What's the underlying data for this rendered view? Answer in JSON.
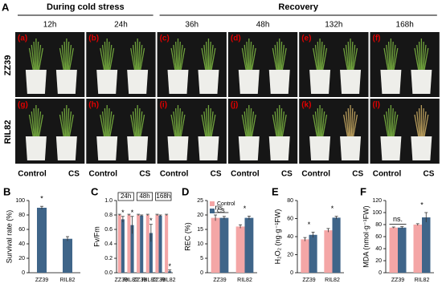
{
  "panel_a": {
    "label": "A",
    "headers": [
      "During cold stress",
      "Recovery"
    ],
    "times": [
      "12h",
      "24h",
      "36h",
      "48h",
      "132h",
      "168h"
    ],
    "rows": [
      "ZZ39",
      "RIL82"
    ],
    "panel_letters": [
      "(a)",
      "(b)",
      "(c)",
      "(d)",
      "(e)",
      "(f)",
      "(g)",
      "(h)",
      "(i)",
      "(j)",
      "(k)",
      "(l)"
    ],
    "treatments": [
      "Control",
      "CS"
    ]
  },
  "chart_data": [
    {
      "type": "bar",
      "panel": "B",
      "y_label": "Survival rate (%)",
      "categories": [
        "ZZ39",
        "RIL82"
      ],
      "series": [
        {
          "color": "#3f6589",
          "values": [
            90,
            47
          ],
          "errors": [
            2,
            3
          ]
        }
      ],
      "significance": [
        "*",
        null
      ],
      "ylim": [
        0,
        100
      ],
      "yticks": [
        0,
        20,
        40,
        60,
        80,
        100
      ]
    },
    {
      "type": "bar",
      "panel": "C",
      "y_label": "Fv/Fm",
      "groups": [
        "24h",
        "48h",
        "168h"
      ],
      "categories": [
        "ZZ39",
        "RIL82",
        "ZZ39",
        "RIL82",
        "ZZ39",
        "RIL82"
      ],
      "series": [
        {
          "name": "Control",
          "color": "#f4a6a6",
          "values": [
            0.8,
            0.8,
            0.8,
            0.8,
            0.8,
            0.8
          ],
          "errors": [
            0.01,
            0.01,
            0.01,
            0.01,
            0.01,
            0.01
          ]
        },
        {
          "name": "CS",
          "color": "#3f6589",
          "values": [
            0.74,
            0.66,
            0.79,
            0.55,
            0.79,
            0.02
          ],
          "errors": [
            0.04,
            0.12,
            0.01,
            0.12,
            0.01,
            0.02
          ],
          "significance": [
            "*",
            "*",
            null,
            "*",
            null,
            "*"
          ]
        }
      ],
      "ylim": [
        0,
        1
      ],
      "yticks": [
        {
          "value": 0,
          "label": "0.0"
        },
        {
          "value": 0.2,
          "label": "0.2"
        },
        {
          "value": 0.4,
          "label": "0.4"
        },
        {
          "value": 0.6,
          "label": "0.6"
        },
        {
          "value": 0.8,
          "label": "0.8"
        },
        {
          "value": 1,
          "label": "1.0"
        }
      ]
    },
    {
      "type": "bar",
      "panel": "D",
      "y_label": "REC (%)",
      "categories": [
        "ZZ39",
        "RIL82"
      ],
      "series": [
        {
          "name": "Control",
          "color": "#f4a6a6",
          "values": [
            19,
            16
          ],
          "errors": [
            1,
            0.6
          ]
        },
        {
          "name": "CS",
          "color": "#3f6589",
          "values": [
            19,
            19
          ],
          "errors": [
            0.5,
            0.6
          ]
        }
      ],
      "significance": [
        "ns.",
        "*"
      ],
      "legend": "upper left",
      "ylim": [
        0,
        25
      ],
      "yticks": [
        0,
        5,
        10,
        15,
        20,
        25
      ]
    },
    {
      "type": "bar",
      "panel": "E",
      "y_label": "H₂O₂ (ng·g⁻¹FW)",
      "categories": [
        "ZZ39",
        "RIL82"
      ],
      "series": [
        {
          "name": "Control",
          "color": "#f4a6a6",
          "values": [
            37,
            47
          ],
          "errors": [
            2,
            2
          ]
        },
        {
          "name": "CS",
          "color": "#3f6589",
          "values": [
            42,
            61
          ],
          "errors": [
            3,
            1.5
          ]
        }
      ],
      "significance": [
        "*",
        "*"
      ],
      "ylim": [
        0,
        80
      ],
      "yticks": [
        0,
        20,
        40,
        60,
        80
      ]
    },
    {
      "type": "bar",
      "panel": "F",
      "y_label": "MDA (nmol·g⁻¹FW)",
      "categories": [
        "ZZ39",
        "RIL82"
      ],
      "series": [
        {
          "name": "Control",
          "color": "#f4a6a6",
          "values": [
            75,
            80
          ],
          "errors": [
            1,
            1.5
          ]
        },
        {
          "name": "CS",
          "color": "#3f6589",
          "values": [
            75,
            92
          ],
          "errors": [
            1.5,
            8
          ]
        }
      ],
      "significance": [
        "ns.",
        "*"
      ],
      "ylim": [
        0,
        120
      ],
      "yticks": [
        0,
        20,
        40,
        60,
        80,
        100,
        120
      ]
    }
  ]
}
